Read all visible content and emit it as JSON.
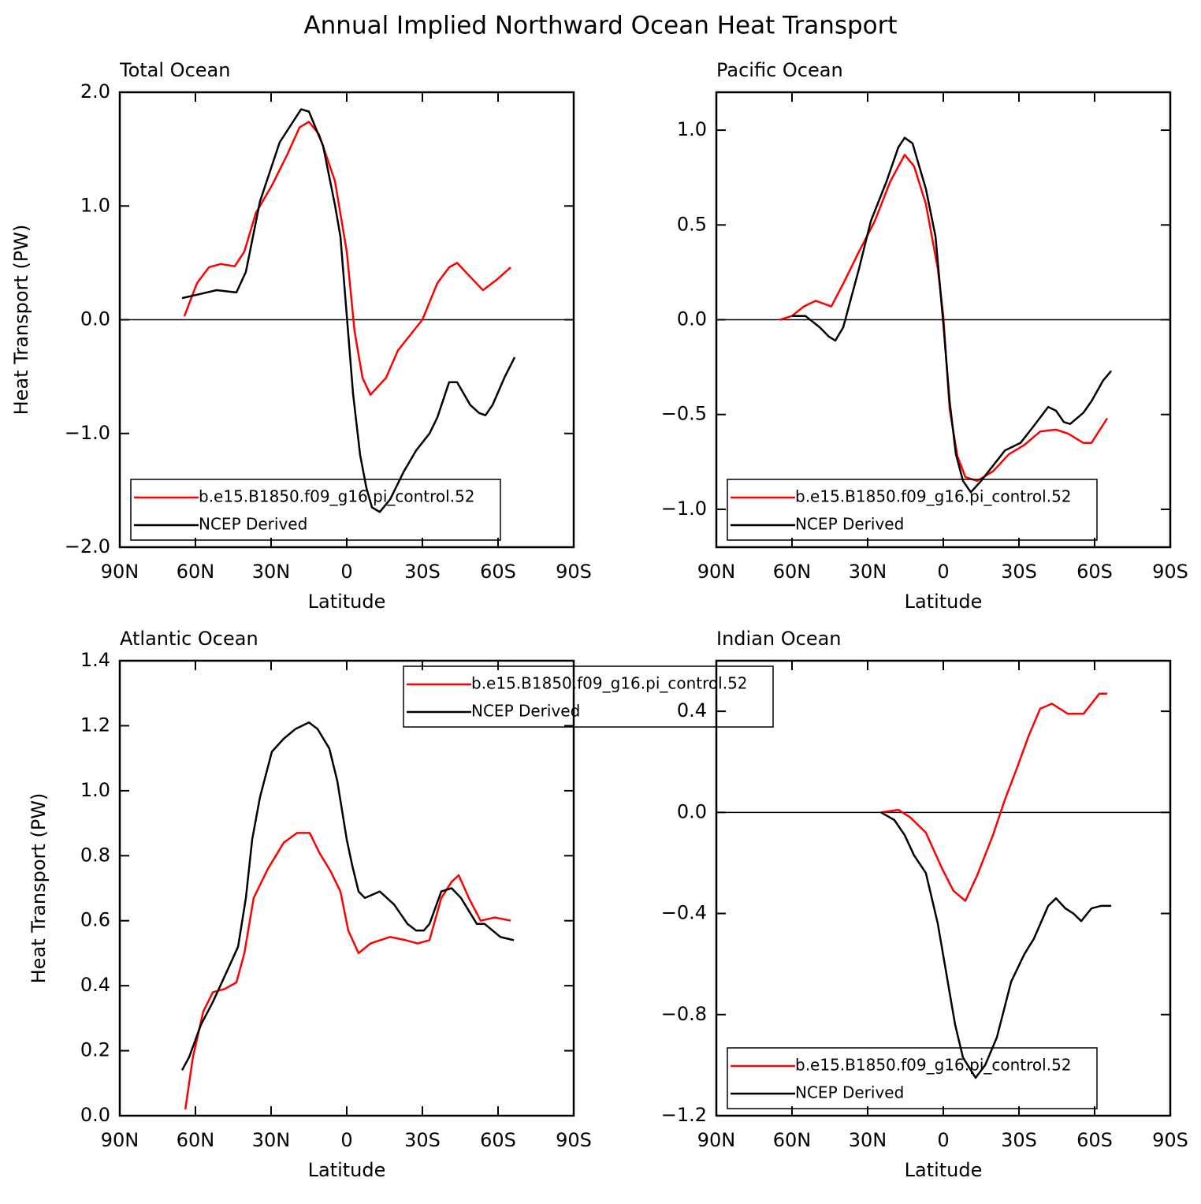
{
  "title": "Annual Implied Northward Ocean Heat Transport",
  "chart_data": [
    {
      "type": "line",
      "title": "Total Ocean",
      "xlabel": "Latitude",
      "ylabel": "Heat Transport (PW)",
      "xlim": [
        90,
        -90
      ],
      "xticks": [
        {
          "value": 90,
          "label": "90N"
        },
        {
          "value": 60,
          "label": "60N"
        },
        {
          "value": 30,
          "label": "30N"
        },
        0,
        {
          "value": -30,
          "label": "30S"
        },
        {
          "value": -60,
          "label": "60S"
        },
        {
          "value": -90,
          "label": "90S"
        }
      ],
      "ylim": [
        -2,
        2
      ],
      "yticks": [
        {
          "value": -2,
          "label": "−2.0"
        },
        {
          "value": -1,
          "label": "−1.0"
        },
        {
          "value": 0,
          "label": "0.0"
        },
        {
          "value": 1,
          "label": "1.0"
        },
        {
          "value": 2,
          "label": "2.0"
        }
      ],
      "zero_line": true,
      "legend": "lower left",
      "series": [
        {
          "name": "b.e15.B1850.f09_g16.pi_control.52",
          "color": "#ff0000",
          "x": [
            64.4,
            59.4,
            54.7,
            50,
            44.4,
            40.6,
            36,
            29.7,
            23.4,
            18.75,
            15,
            11,
            4.7,
            0,
            -3.1,
            -6.25,
            -9.4,
            -15.6,
            -20.3,
            -30,
            -35.9,
            -40.6,
            -43.75,
            -48.4,
            -54,
            -59.4,
            -65
          ],
          "values": [
            0.03,
            0.32,
            0.46,
            0.49,
            0.47,
            0.6,
            0.94,
            1.18,
            1.46,
            1.69,
            1.74,
            1.63,
            1.22,
            0.6,
            -0.1,
            -0.51,
            -0.66,
            -0.51,
            -0.27,
            0,
            0.32,
            0.46,
            0.5,
            0.39,
            0.26,
            0.35,
            0.46
          ]
        },
        {
          "name": "NCEP Derived",
          "color": "#000000",
          "x": [
            65.3,
            59.4,
            51.6,
            43.75,
            40,
            34.4,
            26.6,
            18.1,
            15,
            9.4,
            4.7,
            2.5,
            0,
            -2.5,
            -5.3,
            -7.8,
            -10,
            -13.1,
            -17.2,
            -22.5,
            -27.5,
            -32.8,
            -35.9,
            -40.6,
            -43.75,
            -49,
            -52.5,
            -55,
            -57.8,
            -62.5,
            -66.6
          ],
          "values": [
            0.19,
            0.22,
            0.26,
            0.24,
            0.42,
            1.04,
            1.56,
            1.85,
            1.83,
            1.53,
            1.01,
            0.73,
            0.04,
            -0.65,
            -1.19,
            -1.48,
            -1.65,
            -1.69,
            -1.58,
            -1.34,
            -1.15,
            -1,
            -0.86,
            -0.55,
            -0.55,
            -0.75,
            -0.82,
            -0.84,
            -0.75,
            -0.51,
            -0.33
          ]
        }
      ]
    },
    {
      "type": "line",
      "title": "Pacific Ocean",
      "xlabel": "Latitude",
      "xlim": [
        90,
        -90
      ],
      "xticks": [
        {
          "value": 90,
          "label": "90N"
        },
        {
          "value": 60,
          "label": "60N"
        },
        {
          "value": 30,
          "label": "30N"
        },
        0,
        {
          "value": -30,
          "label": "30S"
        },
        {
          "value": -60,
          "label": "60S"
        },
        {
          "value": -90,
          "label": "90S"
        }
      ],
      "ylim": [
        -1.2,
        1.2
      ],
      "yticks": [
        {
          "value": -1,
          "label": "−1.0"
        },
        {
          "value": -0.5,
          "label": "−0.5"
        },
        {
          "value": 0,
          "label": "0.0"
        },
        0.5,
        {
          "value": 1,
          "label": "1.0"
        }
      ],
      "zero_line": true,
      "legend": "lower left",
      "series": [
        {
          "name": "b.e15.B1850.f09_g16.pi_control.52",
          "color": "#ff0000",
          "x": [
            64.7,
            60,
            55.3,
            50.6,
            44.4,
            39.7,
            33.4,
            27.2,
            21,
            15.3,
            11.6,
            6.9,
            2.2,
            0,
            -2.5,
            -5.6,
            -8.75,
            -13.4,
            -19.7,
            -26,
            -32.2,
            -38.4,
            -44.7,
            -49.4,
            -55.6,
            -58.75,
            -65
          ],
          "values": [
            0,
            0.02,
            0.07,
            0.1,
            0.07,
            0.19,
            0.36,
            0.52,
            0.73,
            0.87,
            0.81,
            0.61,
            0.27,
            0.02,
            -0.47,
            -0.72,
            -0.83,
            -0.85,
            -0.8,
            -0.71,
            -0.66,
            -0.59,
            -0.58,
            -0.6,
            -0.65,
            -0.65,
            -0.52
          ]
        },
        {
          "name": "NCEP Derived",
          "color": "#000000",
          "x": [
            60,
            54.7,
            49,
            45.3,
            42.8,
            39.7,
            33.4,
            28.75,
            22.5,
            17.8,
            15.3,
            12.2,
            10,
            6.9,
            3.1,
            0,
            -2.5,
            -5,
            -7.8,
            -10.9,
            -15,
            -20.3,
            -24.4,
            -30.6,
            -35.9,
            -41.6,
            -44.7,
            -47.8,
            -50.3,
            -55.6,
            -58.75,
            -63.4,
            -66.6
          ],
          "values": [
            0.02,
            0.02,
            -0.04,
            -0.09,
            -0.11,
            -0.04,
            0.27,
            0.52,
            0.73,
            0.91,
            0.96,
            0.93,
            0.83,
            0.69,
            0.44,
            -0.02,
            -0.43,
            -0.71,
            -0.85,
            -0.91,
            -0.85,
            -0.76,
            -0.69,
            -0.65,
            -0.56,
            -0.46,
            -0.48,
            -0.54,
            -0.55,
            -0.49,
            -0.43,
            -0.32,
            -0.27
          ]
        }
      ]
    },
    {
      "type": "line",
      "title": "Atlantic Ocean",
      "xlabel": "Latitude",
      "ylabel": "Heat Transport (PW)",
      "xlim": [
        90,
        -90
      ],
      "xticks": [
        {
          "value": 90,
          "label": "90N"
        },
        {
          "value": 60,
          "label": "60N"
        },
        {
          "value": 30,
          "label": "30N"
        },
        0,
        {
          "value": -30,
          "label": "30S"
        },
        {
          "value": -60,
          "label": "60S"
        },
        {
          "value": -90,
          "label": "90S"
        }
      ],
      "ylim": [
        0,
        1.4
      ],
      "yticks": [
        {
          "value": 0,
          "label": "0.0"
        },
        0.2,
        0.4,
        0.6,
        0.8,
        {
          "value": 1,
          "label": "1.0"
        },
        1.2,
        1.4
      ],
      "zero_line": false,
      "legend": "upper right",
      "series": [
        {
          "name": "b.e15.B1850.f09_g16.pi_control.52",
          "color": "#ff0000",
          "x": [
            64,
            61,
            56.9,
            53.1,
            48.4,
            43.75,
            40.6,
            36.9,
            31.25,
            25,
            19.7,
            14.7,
            10.9,
            6.25,
            2.5,
            -0.6,
            -4.7,
            -9.4,
            -17.2,
            -23.4,
            -28.1,
            -32.8,
            -37.5,
            -41.6,
            -44.4,
            -48.4,
            -53.1,
            -58.75,
            -65
          ],
          "values": [
            0.02,
            0.18,
            0.32,
            0.38,
            0.39,
            0.41,
            0.5,
            0.67,
            0.76,
            0.84,
            0.87,
            0.87,
            0.81,
            0.75,
            0.69,
            0.57,
            0.5,
            0.53,
            0.55,
            0.54,
            0.53,
            0.54,
            0.67,
            0.72,
            0.74,
            0.67,
            0.6,
            0.61,
            0.6
          ]
        },
        {
          "name": "NCEP Derived",
          "color": "#000000",
          "x": [
            65.3,
            62.5,
            57.8,
            53.1,
            46,
            43.1,
            40,
            37.5,
            34.4,
            29.7,
            25,
            20.3,
            15,
            11.6,
            6.9,
            3.75,
            0,
            -2.2,
            -4.7,
            -7.2,
            -13.1,
            -18.75,
            -24.1,
            -27.5,
            -30.6,
            -32.8,
            -37.5,
            -41.6,
            -45.3,
            -51.6,
            -54.7,
            -57.8,
            -60.9,
            -66.25
          ],
          "values": [
            0.14,
            0.18,
            0.28,
            0.35,
            0.47,
            0.52,
            0.67,
            0.85,
            0.98,
            1.12,
            1.16,
            1.19,
            1.21,
            1.19,
            1.13,
            1.03,
            0.85,
            0.77,
            0.69,
            0.67,
            0.69,
            0.65,
            0.59,
            0.57,
            0.57,
            0.59,
            0.69,
            0.7,
            0.67,
            0.59,
            0.59,
            0.57,
            0.55,
            0.54
          ]
        }
      ]
    },
    {
      "type": "line",
      "title": "Indian Ocean",
      "xlabel": "Latitude",
      "xlim": [
        90,
        -90
      ],
      "xticks": [
        {
          "value": 90,
          "label": "90N"
        },
        {
          "value": 60,
          "label": "60N"
        },
        {
          "value": 30,
          "label": "30N"
        },
        0,
        {
          "value": -30,
          "label": "30S"
        },
        {
          "value": -60,
          "label": "60S"
        },
        {
          "value": -90,
          "label": "90S"
        }
      ],
      "ylim": [
        -1.2,
        0.6
      ],
      "yticks": [
        {
          "value": -1.2,
          "label": "−1.2"
        },
        {
          "value": -0.8,
          "label": "−0.8"
        },
        {
          "value": -0.4,
          "label": "−0.4"
        },
        {
          "value": 0,
          "label": "0.0"
        },
        0.4
      ],
      "zero_line": true,
      "legend": "lower left",
      "series": [
        {
          "name": "b.e15.B1850.f09_g16.pi_control.52",
          "color": "#ff0000",
          "x": [
            24.7,
            17.8,
            13.1,
            6.9,
            0.6,
            -4,
            -8.75,
            -13.4,
            -19.7,
            -24.4,
            -29,
            -33.75,
            -38.4,
            -43.1,
            -49.4,
            -55.6,
            -61.9,
            -65
          ],
          "values": [
            0,
            0.01,
            -0.02,
            -0.08,
            -0.22,
            -0.31,
            -0.35,
            -0.25,
            -0.09,
            0.05,
            0.17,
            0.3,
            0.41,
            0.43,
            0.39,
            0.39,
            0.47,
            0.47
          ]
        },
        {
          "name": "NCEP Derived",
          "color": "#000000",
          "x": [
            24.7,
            19.4,
            15.3,
            11.6,
            6.9,
            2.2,
            -0.9,
            -4.7,
            -7.8,
            -12.8,
            -16.6,
            -21.25,
            -26.9,
            -32.2,
            -35.9,
            -41.6,
            -44.7,
            -48.4,
            -51.6,
            -54.7,
            -58.75,
            -62.5,
            -66.6
          ],
          "values": [
            0,
            -0.03,
            -0.09,
            -0.17,
            -0.24,
            -0.44,
            -0.62,
            -0.84,
            -0.97,
            -1.05,
            -1,
            -0.89,
            -0.67,
            -0.56,
            -0.5,
            -0.37,
            -0.34,
            -0.38,
            -0.4,
            -0.43,
            -0.38,
            -0.37,
            -0.37
          ]
        }
      ]
    }
  ]
}
